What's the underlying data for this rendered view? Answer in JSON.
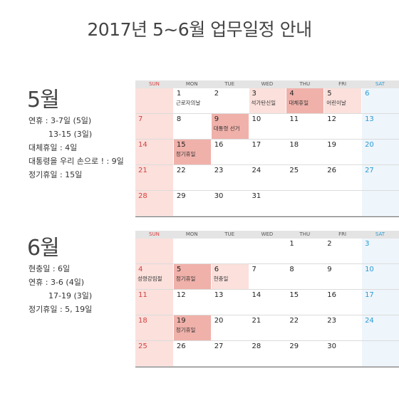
{
  "title": "2017년 5~6월 업무일정 안내",
  "dow": [
    "SUN",
    "MON",
    "TUE",
    "WED",
    "THU",
    "FRI",
    "SAT"
  ],
  "may": {
    "label": "5월",
    "notes": [
      "연휴 : 3-7일 (5일)",
      "13-15 (3일)",
      "대체휴일 : 4일",
      "대통령을 우리 손으로 ! : 9일",
      "정기휴일 : 15일"
    ],
    "weeks": [
      [
        null,
        {
          "d": "1",
          "t": "근로자의날"
        },
        {
          "d": "2"
        },
        {
          "d": "3",
          "t": "석가탄신일",
          "hl": "light"
        },
        {
          "d": "4",
          "t": "대체휴일",
          "hl": "dark"
        },
        {
          "d": "5",
          "t": "어린이날",
          "hl": "light"
        },
        {
          "d": "6"
        }
      ],
      [
        {
          "d": "7"
        },
        {
          "d": "8"
        },
        {
          "d": "9",
          "t": "대통령 선거",
          "hl": "dark"
        },
        {
          "d": "10"
        },
        {
          "d": "11"
        },
        {
          "d": "12"
        },
        {
          "d": "13"
        }
      ],
      [
        {
          "d": "14"
        },
        {
          "d": "15",
          "t": "정기휴일",
          "hl": "dark"
        },
        {
          "d": "16"
        },
        {
          "d": "17"
        },
        {
          "d": "18"
        },
        {
          "d": "19"
        },
        {
          "d": "20"
        }
      ],
      [
        {
          "d": "21"
        },
        {
          "d": "22"
        },
        {
          "d": "23"
        },
        {
          "d": "24"
        },
        {
          "d": "25"
        },
        {
          "d": "26"
        },
        {
          "d": "27"
        }
      ],
      [
        {
          "d": "28"
        },
        {
          "d": "29"
        },
        {
          "d": "30"
        },
        {
          "d": "31"
        },
        null,
        null,
        null
      ]
    ]
  },
  "june": {
    "label": "6월",
    "notes": [
      "현충일 : 6일",
      "연휴 : 3-6 (4일)",
      "17-19 (3일)",
      "정기휴일 : 5, 19일"
    ],
    "weeks": [
      [
        null,
        null,
        null,
        null,
        {
          "d": "1"
        },
        {
          "d": "2"
        },
        {
          "d": "3"
        }
      ],
      [
        {
          "d": "4",
          "t": "성령강림절"
        },
        {
          "d": "5",
          "t": "정기휴일",
          "hl": "dark"
        },
        {
          "d": "6",
          "t": "현충일",
          "hl": "light"
        },
        {
          "d": "7"
        },
        {
          "d": "8"
        },
        {
          "d": "9"
        },
        {
          "d": "10"
        }
      ],
      [
        {
          "d": "11"
        },
        {
          "d": "12"
        },
        {
          "d": "13"
        },
        {
          "d": "14"
        },
        {
          "d": "15"
        },
        {
          "d": "16"
        },
        {
          "d": "17"
        }
      ],
      [
        {
          "d": "18"
        },
        {
          "d": "19",
          "t": "정기휴일",
          "hl": "dark"
        },
        {
          "d": "20"
        },
        {
          "d": "21"
        },
        {
          "d": "22"
        },
        {
          "d": "23"
        },
        {
          "d": "24"
        }
      ],
      [
        {
          "d": "25"
        },
        {
          "d": "26"
        },
        {
          "d": "27"
        },
        {
          "d": "28"
        },
        {
          "d": "29"
        },
        {
          "d": "30"
        },
        null
      ]
    ]
  }
}
